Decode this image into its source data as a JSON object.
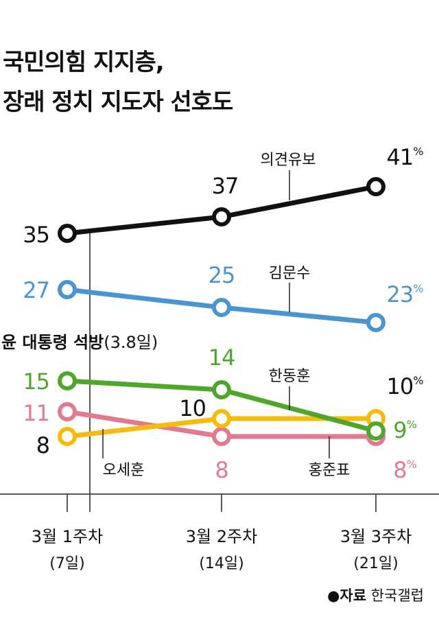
{
  "title_lines": [
    "국민의힘 지지층,",
    "장래 정치 지도자 선호도"
  ],
  "source_label": "●자료",
  "source_value": "한국갤럽",
  "chart_data": {
    "type": "line",
    "categories": [
      "3월 1주차",
      "3월 2주차",
      "3월 3주차"
    ],
    "category_sublabels": [
      "(7일)",
      "(14일)",
      "(21일)"
    ],
    "unit": "%",
    "annotation": {
      "label_bold": "윤 대통령 석방",
      "label_rest": "(3.8일)",
      "position_between": [
        "3월 1주차",
        "3월 2주차"
      ]
    },
    "grid": false,
    "series": [
      {
        "name": "의견유보",
        "values": [
          35,
          37,
          41
        ],
        "color": "#111111",
        "label_color": "#111111"
      },
      {
        "name": "김문수",
        "values": [
          27,
          25,
          23
        ],
        "color": "#4a94cf",
        "label_color": "#4a94cf"
      },
      {
        "name": "한동훈",
        "values": [
          15,
          14,
          9
        ],
        "color": "#4ea62b",
        "label_color": "#4ea62b"
      },
      {
        "name": "홍준표",
        "values": [
          11,
          8,
          8
        ],
        "color": "#e07a8e",
        "label_color": "#e07a8e"
      },
      {
        "name": "오세훈",
        "values": [
          8,
          10,
          10
        ],
        "color": "#f6bb0c",
        "label_color": "#111111"
      }
    ]
  }
}
